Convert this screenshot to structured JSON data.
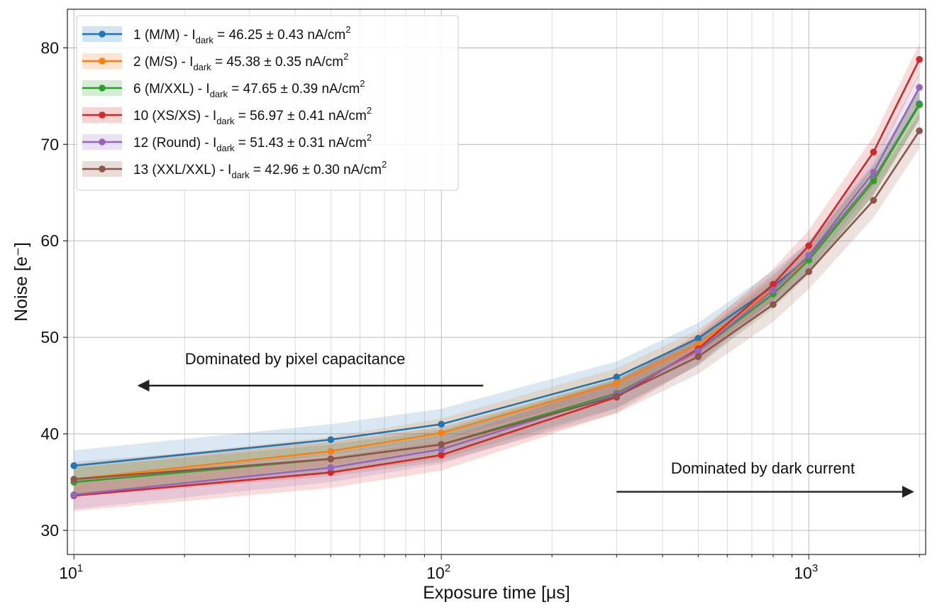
{
  "chart_data": {
    "type": "line",
    "xlabel": "Exposure time [μs]",
    "ylabel": "Noise [e⁻]",
    "xscale": "log",
    "xlim": [
      9.6,
      2080
    ],
    "ylim": [
      27.5,
      84
    ],
    "x_ticks": [
      {
        "value": 10,
        "base": "10",
        "exp": "1"
      },
      {
        "value": 100,
        "base": "10",
        "exp": "2"
      },
      {
        "value": 1000,
        "base": "10",
        "exp": "3"
      }
    ],
    "y_ticks": [
      30,
      40,
      50,
      60,
      70,
      80
    ],
    "grid": true,
    "legend_position": "top-left",
    "x": [
      10,
      50,
      100,
      300,
      500,
      800,
      1000,
      1500,
      2000
    ],
    "series": [
      {
        "name": "1 (M/M) - I",
        "sub": "dark",
        "mid": " = ",
        "value": "46.25",
        "pm": " ±  ",
        "err": "0.43",
        "unit": " nA/cm",
        "sup": "2",
        "color": "#1f77b4",
        "values": [
          36.7,
          39.4,
          41.0,
          45.9,
          49.9,
          55.3,
          58.3,
          66.4,
          74.2
        ],
        "band": 1.6
      },
      {
        "name": "2 (M/S) - I",
        "sub": "dark",
        "mid": " = ",
        "value": "45.38",
        "pm": " ±  ",
        "err": "0.35",
        "unit": " nA/cm",
        "sup": "2",
        "color": "#ff7f0e",
        "values": [
          35.3,
          38.2,
          40.1,
          45.3,
          49.3,
          55.0,
          58.1,
          66.3,
          74.1
        ],
        "band": 1.5
      },
      {
        "name": "6 (M/XXL) - I",
        "sub": "dark",
        "mid": " = ",
        "value": "47.65",
        "pm": " ±  ",
        "err": "0.39",
        "unit": " nA/cm",
        "sup": "2",
        "color": "#2ca02c",
        "values": [
          35.0,
          37.4,
          38.9,
          44.2,
          48.6,
          54.5,
          58.0,
          66.2,
          74.1
        ],
        "band": 1.5
      },
      {
        "name": "10 (XS/XS) - I",
        "sub": "dark",
        "mid": " = ",
        "value": "56.97",
        "pm": " ±  ",
        "err": "0.41",
        "unit": " nA/cm",
        "sup": "2",
        "color": "#d62728",
        "values": [
          33.6,
          36.0,
          37.8,
          43.8,
          48.8,
          55.5,
          59.5,
          69.2,
          78.8
        ],
        "band": 1.6
      },
      {
        "name": "12 (Round) - I",
        "sub": "dark",
        "mid": " = ",
        "value": "51.43",
        "pm": " ±  ",
        "err": "0.31",
        "unit": " nA/cm",
        "sup": "2",
        "color": "#9467bd",
        "values": [
          33.7,
          36.5,
          38.4,
          44.1,
          48.6,
          54.9,
          58.5,
          67.1,
          75.9
        ],
        "band": 1.5
      },
      {
        "name": "13 (XXL/XXL) - I",
        "sub": "dark",
        "mid": " = ",
        "value": "42.96",
        "pm": " ±  ",
        "err": "0.30",
        "unit": " nA/cm",
        "sup": "2",
        "color": "#8c564b",
        "values": [
          35.3,
          37.4,
          38.9,
          43.9,
          48.0,
          53.4,
          56.8,
          64.2,
          71.4
        ],
        "band": 1.8
      }
    ],
    "annotations": [
      {
        "text": "Dominated by pixel capacitance",
        "arrow_from": [
          130,
          45
        ],
        "arrow_to": [
          15,
          45
        ],
        "text_x": 40,
        "text_y": 47.2
      },
      {
        "text": "Dominated by dark current",
        "arrow_from": [
          300,
          34
        ],
        "arrow_to": [
          1920,
          34
        ],
        "text_x": 750,
        "text_y": 35.9
      }
    ]
  }
}
